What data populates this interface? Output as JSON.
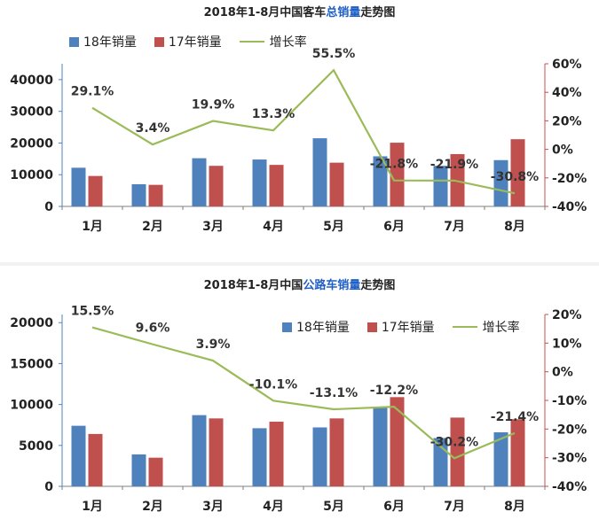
{
  "colors": {
    "bar18": "#4f81bd",
    "bar17": "#c0504d",
    "line": "#9bbb59",
    "axisRight": "#c0504d"
  },
  "chart_data": [
    {
      "type": "bar",
      "title_parts": [
        {
          "text": "2018年1-8月中国客车",
          "highlight": false
        },
        {
          "text": "总销量",
          "highlight": true
        },
        {
          "text": "走势图",
          "highlight": false
        }
      ],
      "categories": [
        "1月",
        "2月",
        "3月",
        "4月",
        "5月",
        "6月",
        "7月",
        "8月"
      ],
      "series": [
        {
          "name": "18年销量",
          "values": [
            12200,
            7000,
            15200,
            14800,
            21500,
            15800,
            12800,
            14600
          ]
        },
        {
          "name": "17年销量",
          "values": [
            9600,
            6800,
            12800,
            13100,
            13800,
            20100,
            16500,
            21200
          ]
        }
      ],
      "line": {
        "name": "增长率",
        "values": [
          29.1,
          3.4,
          19.9,
          13.3,
          55.5,
          -21.8,
          -21.9,
          -30.8
        ],
        "labels": [
          "29.1%",
          "3.4%",
          "19.9%",
          "13.3%",
          "55.5%",
          "-21.8%",
          "-21.9%",
          "-30.8%"
        ]
      },
      "ylim": [
        0,
        45000
      ],
      "yticks": [
        "0",
        "10000",
        "20000",
        "30000",
        "40000"
      ],
      "y2lim": [
        -40,
        60
      ],
      "y2ticks": [
        "-40%",
        "-20%",
        "0%",
        "20%",
        "40%",
        "60%"
      ],
      "legend_position": "top-left"
    },
    {
      "type": "bar",
      "title_parts": [
        {
          "text": "2018年1-8月中国",
          "highlight": false
        },
        {
          "text": "公路车销量",
          "highlight": true
        },
        {
          "text": "走势图",
          "highlight": false
        }
      ],
      "categories": [
        "1月",
        "2月",
        "3月",
        "4月",
        "5月",
        "6月",
        "7月",
        "8月"
      ],
      "series": [
        {
          "name": "18年销量",
          "values": [
            7400,
            3900,
            8700,
            7100,
            7200,
            9600,
            5900,
            6600
          ]
        },
        {
          "name": "17年销量",
          "values": [
            6400,
            3500,
            8300,
            7900,
            8300,
            10900,
            8400,
            8200
          ]
        }
      ],
      "line": {
        "name": "增长率",
        "values": [
          15.5,
          9.6,
          3.9,
          -10.1,
          -13.1,
          -12.2,
          -30.2,
          -21.4
        ],
        "labels": [
          "15.5%",
          "9.6%",
          "3.9%",
          "-10.1%",
          "-13.1%",
          "-12.2%",
          "-30.2%",
          "-21.4%"
        ]
      },
      "ylim": [
        0,
        21000
      ],
      "yticks": [
        "0",
        "5000",
        "10000",
        "15000",
        "20000"
      ],
      "y2lim": [
        -40,
        20
      ],
      "y2ticks": [
        "-40%",
        "-30%",
        "-20%",
        "-10%",
        "0%",
        "10%",
        "20%"
      ],
      "legend_position": "top-right"
    }
  ]
}
